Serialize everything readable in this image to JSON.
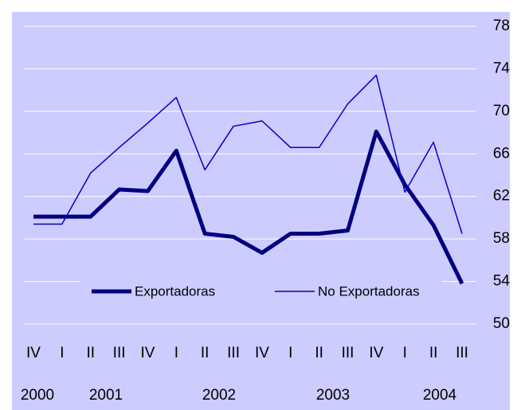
{
  "chart_data": {
    "type": "line",
    "categories": [
      "IV",
      "I",
      "II",
      "III",
      "IV",
      "I",
      "II",
      "III",
      "IV",
      "I",
      "II",
      "III",
      "IV",
      "I",
      "II",
      "III"
    ],
    "year_labels": [
      "2000",
      "2001",
      "2002",
      "2003",
      "2004"
    ],
    "series": [
      {
        "name": "Exportadoras",
        "color": "#000080",
        "values": [
          60.1,
          60.1,
          60.1,
          62.65,
          62.5,
          66.3,
          58.5,
          58.2,
          56.7,
          58.5,
          58.5,
          58.8,
          68.1,
          63.1,
          59.3,
          53.8
        ]
      },
      {
        "name": "No Exportadoras",
        "color": "#0000cc",
        "values": [
          59.4,
          59.4,
          64.2,
          66.6,
          68.9,
          71.3,
          64.5,
          68.6,
          69.1,
          66.6,
          66.6,
          70.7,
          73.4,
          62.4,
          67.1,
          58.5
        ]
      }
    ],
    "ylim": [
      50,
      78
    ],
    "yticks": [
      50,
      54,
      58,
      62,
      66,
      70,
      74,
      78
    ],
    "grid": true,
    "y_axis_side": "right"
  }
}
